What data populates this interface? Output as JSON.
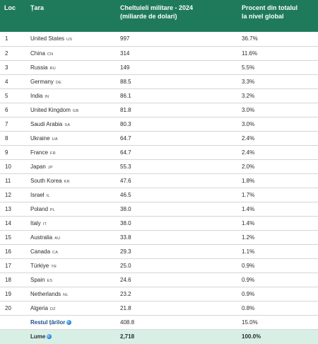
{
  "header": {
    "rank": "Loc",
    "country": "Țara",
    "spending_line1": "Cheltuieli militare - 2024",
    "spending_line2": "(miliarde de dolari)",
    "percent_line1": "Procent din totalul",
    "percent_line2": "la nivel global"
  },
  "rows": [
    {
      "rank": "1",
      "country": "United States",
      "code": "US",
      "spending": "997",
      "percent": "36.7%"
    },
    {
      "rank": "2",
      "country": "China",
      "code": "CN",
      "spending": "314",
      "percent": "11.6%"
    },
    {
      "rank": "3",
      "country": "Russia",
      "code": "RU",
      "spending": "149",
      "percent": "5.5%"
    },
    {
      "rank": "4",
      "country": "Germany",
      "code": "DE",
      "spending": "88.5",
      "percent": "3.3%"
    },
    {
      "rank": "5",
      "country": "India",
      "code": "IN",
      "spending": "86.1",
      "percent": "3.2%"
    },
    {
      "rank": "6",
      "country": "United Kingdom",
      "code": "GB",
      "spending": "81.8",
      "percent": "3.0%"
    },
    {
      "rank": "7",
      "country": "Saudi Arabia",
      "code": "SA",
      "spending": "80.3",
      "percent": "3.0%"
    },
    {
      "rank": "8",
      "country": "Ukraine",
      "code": "UA",
      "spending": "64.7",
      "percent": "2.4%"
    },
    {
      "rank": "9",
      "country": "France",
      "code": "FR",
      "spending": "64.7",
      "percent": "2.4%"
    },
    {
      "rank": "10",
      "country": "Japan",
      "code": "JP",
      "spending": "55.3",
      "percent": "2.0%"
    },
    {
      "rank": "11",
      "country": "South Korea",
      "code": "KR",
      "spending": "47.6",
      "percent": "1.8%"
    },
    {
      "rank": "12",
      "country": "Israel",
      "code": "IL",
      "spending": "46.5",
      "percent": "1.7%"
    },
    {
      "rank": "13",
      "country": "Poland",
      "code": "PL",
      "spending": "38.0",
      "percent": "1.4%"
    },
    {
      "rank": "14",
      "country": "Italy",
      "code": "IT",
      "spending": "38.0",
      "percent": "1.4%"
    },
    {
      "rank": "15",
      "country": "Australia",
      "code": "AU",
      "spending": "33.8",
      "percent": "1.2%"
    },
    {
      "rank": "16",
      "country": "Canada",
      "code": "CA",
      "spending": "29.3",
      "percent": "1.1%"
    },
    {
      "rank": "17",
      "country": "Türkiye",
      "code": "TR",
      "spending": "25.0",
      "percent": "0.9%"
    },
    {
      "rank": "18",
      "country": "Spain",
      "code": "ES",
      "spending": "24.6",
      "percent": "0.9%"
    },
    {
      "rank": "19",
      "country": "Netherlands",
      "code": "NL",
      "spending": "23.2",
      "percent": "0.9%"
    },
    {
      "rank": "20",
      "country": "Algeria",
      "code": "DZ",
      "spending": "21.8",
      "percent": "0.8%"
    }
  ],
  "rest": {
    "label": "Restul țărilor",
    "icon": "globe-icon",
    "spending": "408.8",
    "percent": "15.0%"
  },
  "world": {
    "label": "Lume",
    "icon": "globe-icon",
    "spending": "2,718",
    "percent": "100.0%"
  },
  "colors": {
    "header_bg": "#1f7a5c",
    "header_text": "#ffffff",
    "total_row_bg": "#d8efe6",
    "row_divider": "#d6d6d6"
  }
}
